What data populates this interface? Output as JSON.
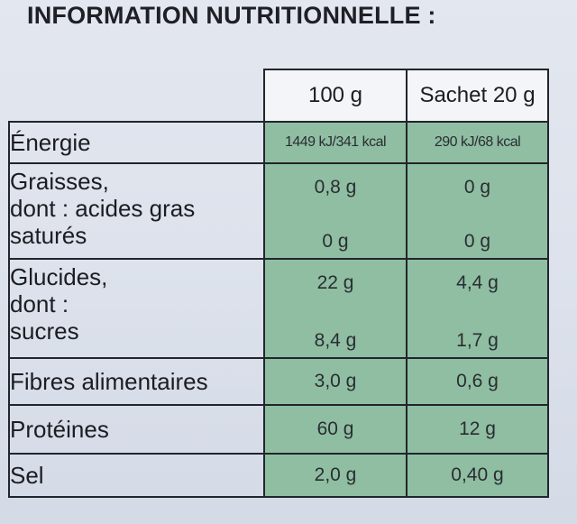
{
  "title": "INFORMATION NUTRITIONNELLE :",
  "headers": {
    "per_100g": "100 g",
    "per_sachet": "Sachet 20 g"
  },
  "rows": {
    "energie": {
      "label": "Énergie",
      "v100": "1449 kJ/341 kcal",
      "vsachet": "290 kJ/68 kcal"
    },
    "graisses": {
      "label_lines": [
        "Graisses,",
        "dont : acides gras",
        "saturés"
      ],
      "v100": "0,8 g",
      "vsachet": "0 g",
      "sub_v100": "0 g",
      "sub_vsachet": "0 g"
    },
    "glucides": {
      "label_lines": [
        "Glucides,",
        "dont :",
        "sucres"
      ],
      "v100": "22 g",
      "vsachet": "4,4 g",
      "sub_v100": "8,4 g",
      "sub_vsachet": "1,7 g"
    },
    "fibres": {
      "label": "Fibres alimentaires",
      "v100": "3,0 g",
      "vsachet": "0,6 g"
    },
    "proteines": {
      "label": "Protéines",
      "v100": "60 g",
      "vsachet": "12 g"
    },
    "sel": {
      "label": "Sel",
      "v100": "2,0 g",
      "vsachet": "0,40 g"
    }
  },
  "colors": {
    "table_fill": "#8fbea2",
    "border": "#22252c",
    "background": "#dde2ec"
  }
}
